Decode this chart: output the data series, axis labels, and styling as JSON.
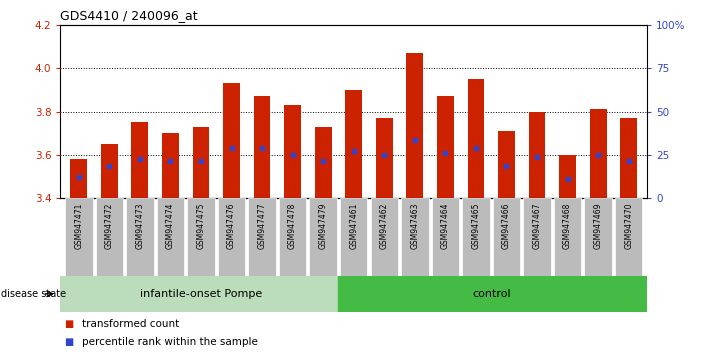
{
  "title": "GDS4410 / 240096_at",
  "samples": [
    "GSM947471",
    "GSM947472",
    "GSM947473",
    "GSM947474",
    "GSM947475",
    "GSM947476",
    "GSM947477",
    "GSM947478",
    "GSM947479",
    "GSM947461",
    "GSM947462",
    "GSM947463",
    "GSM947464",
    "GSM947465",
    "GSM947466",
    "GSM947467",
    "GSM947468",
    "GSM947469",
    "GSM947470"
  ],
  "bar_tops": [
    3.58,
    3.65,
    3.75,
    3.7,
    3.73,
    3.93,
    3.87,
    3.83,
    3.73,
    3.9,
    3.77,
    4.07,
    3.87,
    3.95,
    3.71,
    3.8,
    3.6,
    3.81,
    3.77
  ],
  "bar_bottoms": [
    3.4,
    3.4,
    3.4,
    3.4,
    3.4,
    3.4,
    3.4,
    3.4,
    3.4,
    3.4,
    3.4,
    3.4,
    3.4,
    3.4,
    3.4,
    3.4,
    3.4,
    3.4,
    3.4
  ],
  "dot_positions": [
    3.5,
    3.55,
    3.58,
    3.57,
    3.57,
    3.63,
    3.63,
    3.6,
    3.57,
    3.62,
    3.6,
    3.67,
    3.61,
    3.63,
    3.55,
    3.59,
    3.49,
    3.6,
    3.57
  ],
  "group1_label": "infantile-onset Pompe",
  "group2_label": "control",
  "group1_count": 9,
  "group2_count": 10,
  "ylim": [
    3.4,
    4.2
  ],
  "yticks": [
    3.4,
    3.6,
    3.8,
    4.0,
    4.2
  ],
  "right_yticks_pct": [
    0,
    25,
    50,
    75,
    100
  ],
  "right_ylabels": [
    "0",
    "25",
    "50",
    "75",
    "100%"
  ],
  "bar_color": "#CC2200",
  "dot_color": "#3344CC",
  "tick_bg_color": "#BBBBBB",
  "group1_bg": "#BBDDBB",
  "group2_bg": "#44BB44",
  "disease_state_label": "disease state",
  "legend_bar_label": "transformed count",
  "legend_dot_label": "percentile rank within the sample"
}
